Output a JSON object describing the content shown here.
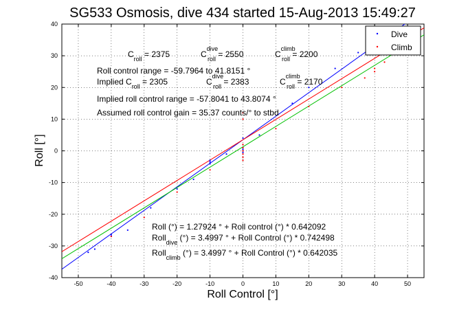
{
  "chart_data": {
    "type": "scatter",
    "title": "SG533 Osmosis, dive 434 started 15-Aug-2013 15:49:27",
    "xlabel": "Roll Control [°]",
    "ylabel": "Roll [°]",
    "xlim": [
      -55,
      55
    ],
    "ylim": [
      -40,
      40
    ],
    "xticks": [
      -50,
      -40,
      -30,
      -20,
      -10,
      0,
      10,
      20,
      30,
      40,
      50
    ],
    "yticks": [
      -40,
      -30,
      -20,
      -10,
      0,
      10,
      20,
      30,
      40
    ],
    "grid": true,
    "legend": {
      "placement": "top-right",
      "entries": [
        {
          "label": "Dive",
          "color": "#0000ff"
        },
        {
          "label": "Climb",
          "color": "#ff0000"
        }
      ]
    },
    "series": [
      {
        "name": "Dive",
        "color": "#0000ff",
        "points": [
          [
            -47,
            -32
          ],
          [
            -45,
            -31
          ],
          [
            -40,
            -27
          ],
          [
            -40,
            -26.5
          ],
          [
            -35,
            -25
          ],
          [
            -28,
            -18
          ],
          [
            -20,
            -12
          ],
          [
            -15,
            -9
          ],
          [
            -10,
            -3
          ],
          [
            -10,
            -3.5
          ],
          [
            -10,
            -4
          ],
          [
            -5,
            -1
          ],
          [
            0,
            0
          ],
          [
            0,
            0.5
          ],
          [
            0,
            -0.5
          ],
          [
            0,
            1
          ],
          [
            0,
            4
          ],
          [
            5,
            5
          ],
          [
            15,
            15
          ],
          [
            20,
            20
          ],
          [
            28,
            26
          ],
          [
            35,
            31
          ],
          [
            40,
            33
          ]
        ]
      },
      {
        "name": "Climb",
        "color": "#ff0000",
        "points": [
          [
            -40,
            -27
          ],
          [
            -30,
            -21
          ],
          [
            -20,
            -13
          ],
          [
            -10,
            -6
          ],
          [
            0,
            -1
          ],
          [
            0,
            0
          ],
          [
            0,
            1
          ],
          [
            0,
            -2
          ],
          [
            0,
            -3
          ],
          [
            0,
            2
          ],
          [
            0,
            12
          ],
          [
            0,
            10
          ],
          [
            10,
            7
          ],
          [
            20,
            14
          ],
          [
            30,
            20
          ],
          [
            37,
            23
          ],
          [
            40,
            25
          ],
          [
            40,
            26
          ],
          [
            43,
            28
          ]
        ]
      }
    ],
    "fit_lines": [
      {
        "color": "#0000ff",
        "intercept": 3.4997,
        "slope": 0.742498
      },
      {
        "color": "#ff0000",
        "intercept": 3.4997,
        "slope": 0.642035
      },
      {
        "color": "#00c000",
        "intercept": 1.27924,
        "slope": 0.642092
      }
    ],
    "annotations": {
      "c_line": {
        "c1": "C",
        "c1sub": "roll",
        "c1val": " = 2375",
        "c2": "C",
        "c2sup": "dive",
        "c2sub": "roll",
        "c2val": " = 2550",
        "c3": "C",
        "c3sup": "climb",
        "c3sub": "roll",
        "c3val": " = 2200"
      },
      "range": "Roll control range = -59.7964 to 41.8151 °",
      "implied_c": {
        "i1": "Implied C",
        "i1sub": "roll",
        "i1val": " = 2305",
        "i2": "C",
        "i2sup": "dive",
        "i2sub": "roll",
        "i2val": " = 2383",
        "i3": "C",
        "i3sup": "climb",
        "i3sub": "roll",
        "i3val": " = 2170"
      },
      "implied_range": "Implied roll control range = -57.8041 to 43.8074 °",
      "gain": "Assumed roll control gain = 35.37 counts/° to stbd",
      "fit1": "Roll (°) = 1.27924 ° + Roll control (°) * 0.642092",
      "fit2": {
        "a": "Roll",
        "sub": "dive",
        "b": " (°) = 3.4997 ° + Roll Control (°) * 0.742498"
      },
      "fit3": {
        "a": "Roll",
        "sub": "climb",
        "b": " (°) = 3.4997 ° + Roll Control (°) * 0.642035"
      }
    }
  }
}
